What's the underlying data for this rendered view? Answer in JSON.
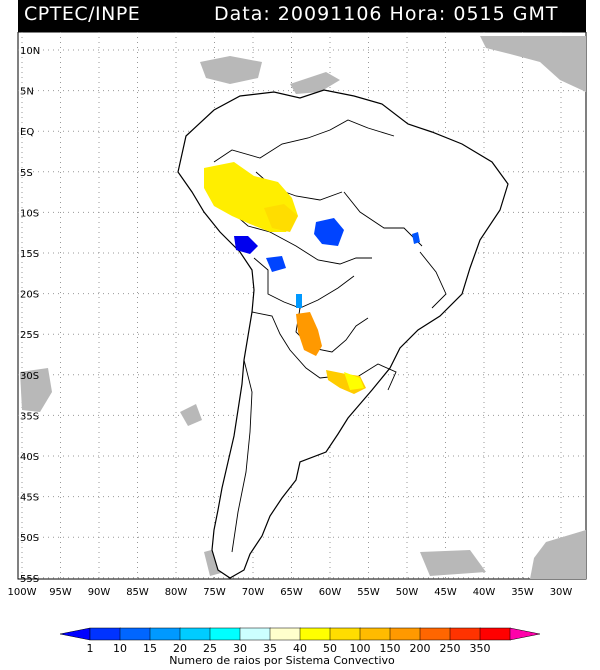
{
  "header": {
    "left": "CPTEC/INPE",
    "right": "Data: 20091106 Hora: 0515 GMT"
  },
  "map": {
    "lat_labels": [
      "10N",
      "5N",
      "EQ",
      "5S",
      "10S",
      "15S",
      "20S",
      "25S",
      "30S",
      "35S",
      "40S",
      "45S",
      "50S",
      "55S"
    ],
    "lon_labels": [
      "100W",
      "95W",
      "90W",
      "85W",
      "80W",
      "75W",
      "70W",
      "65W",
      "60W",
      "55W",
      "50W",
      "45W",
      "40W",
      "35W",
      "30W"
    ]
  },
  "legend": {
    "ticks": [
      "1",
      "10",
      "15",
      "20",
      "25",
      "30",
      "35",
      "40",
      "50",
      "100",
      "150",
      "200",
      "250",
      "350"
    ],
    "colors": [
      "#0000ff",
      "#0033ff",
      "#0066ff",
      "#0099ff",
      "#00ccff",
      "#00ffff",
      "#ccffff",
      "#ffffcc",
      "#ffff00",
      "#ffdd00",
      "#ffbb00",
      "#ff9900",
      "#ff6600",
      "#ff3300",
      "#ff0000",
      "#ff00aa"
    ],
    "title": "Numero de raios por Sistema Convectivo"
  }
}
